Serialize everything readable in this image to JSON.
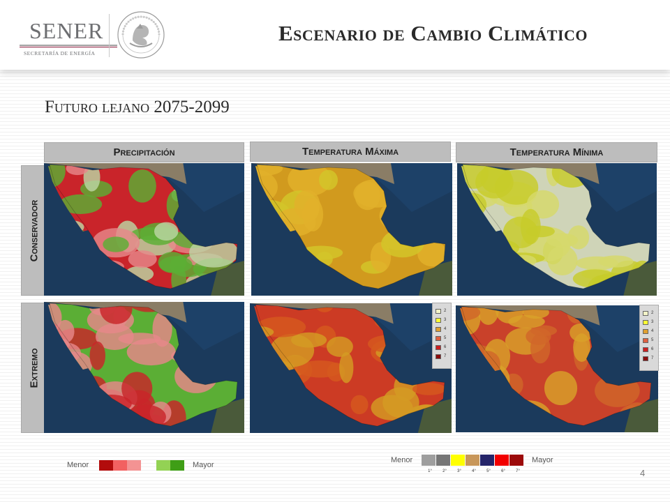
{
  "header": {
    "logo_word": "SENER",
    "logo_sub": "SECRETARÍA DE ENERGÍA",
    "title": "Escenario de Cambio Climático"
  },
  "subtitle": "Futuro lejano 2075-2099",
  "columns": [
    {
      "label": "Precipitación"
    },
    {
      "label": "Temperatura Máxima"
    },
    {
      "label": "Temperatura Mínima"
    }
  ],
  "rows": [
    {
      "label": "Conservador"
    },
    {
      "label": "Extremo"
    }
  ],
  "maps": [
    {
      "name": "conservador-precipitacion",
      "palette": [
        "#c9242a",
        "#e7878a",
        "#bcd6a3",
        "#5cae35"
      ]
    },
    {
      "name": "conservador-temp-max",
      "palette": [
        "#d19a1e",
        "#e2b12b",
        "#d3c62a"
      ]
    },
    {
      "name": "conservador-temp-min",
      "palette": [
        "#cfd4b8",
        "#d5d96a",
        "#c7cc2a"
      ]
    },
    {
      "name": "extremo-precipitacion",
      "palette": [
        "#5bae35",
        "#e7878a",
        "#c9242a"
      ]
    },
    {
      "name": "extremo-temp-max",
      "palette": [
        "#cc3b24",
        "#d5591f",
        "#d49b23"
      ]
    },
    {
      "name": "extremo-temp-min",
      "palette": [
        "#c9412a",
        "#d1662a",
        "#d9a12a"
      ]
    }
  ],
  "map_keys": [
    "2",
    "3",
    "4",
    "5",
    "6",
    "7"
  ],
  "map_key_colors": [
    "#f4f4c8",
    "#ffff33",
    "#e0a030",
    "#e06040",
    "#cc2020",
    "#8b0d0d"
  ],
  "legend_precip": {
    "low": "Menor",
    "high": "Mayor",
    "colors": [
      "#b20c0c",
      "#f26161",
      "#f39393",
      "#93d254",
      "#3f9e16"
    ]
  },
  "legend_temp": {
    "low": "Menor",
    "high": "Mayor",
    "ticks": [
      "1°",
      "2°",
      "3°",
      "4°",
      "5°",
      "6°",
      "7°"
    ],
    "colors": [
      "#9e9e9e",
      "#767676",
      "#ffff00",
      "#c8975a",
      "#25256a",
      "#f20000",
      "#9c0a0a"
    ]
  },
  "page_number": "4"
}
